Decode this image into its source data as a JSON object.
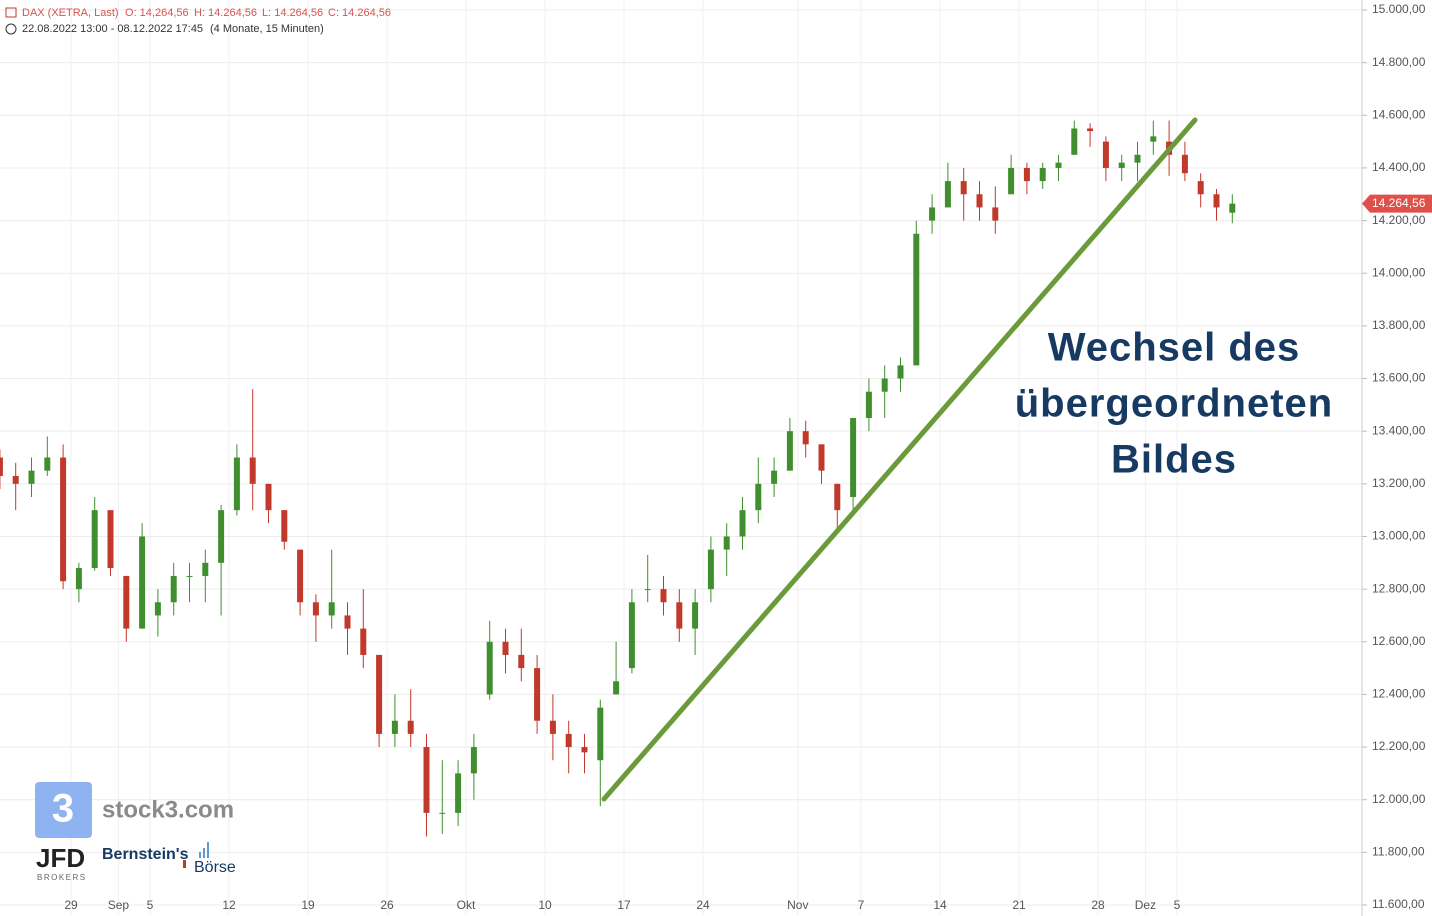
{
  "chart_data": {
    "type": "candlestick",
    "header": {
      "symbol": "DAX (XETRA, Last)",
      "open": "O: 14,264,56",
      "high": "H: 14.264,56",
      "low": "L: 14.264,56",
      "close": "C: 14.264,56",
      "range": "22.08.2022 13:00 - 08.12.2022 17:45",
      "period": "(4 Monate, 15 Minuten)"
    },
    "categories": [
      null,
      null,
      null,
      null,
      null,
      "29",
      null,
      null,
      "Sep",
      null,
      "5",
      null,
      null,
      null,
      null,
      "12",
      null,
      null,
      null,
      null,
      "19",
      null,
      null,
      null,
      null,
      "26",
      null,
      null,
      null,
      null,
      "Okt",
      null,
      null,
      null,
      null,
      "10",
      null,
      null,
      null,
      null,
      "17",
      null,
      null,
      null,
      null,
      "24",
      null,
      null,
      null,
      null,
      null,
      "Nov",
      null,
      null,
      null,
      "7",
      null,
      null,
      null,
      null,
      "14",
      null,
      null,
      null,
      null,
      "21",
      null,
      null,
      null,
      null,
      "28",
      null,
      null,
      "Dez",
      null,
      "5",
      null,
      null,
      null
    ],
    "open": [
      13300,
      13230,
      13200,
      13250,
      13300,
      12800,
      12880,
      13100,
      12850,
      12650,
      12700,
      12750,
      12850,
      12850,
      12900,
      13100,
      13300,
      13200,
      13100,
      12950,
      12750,
      12700,
      12700,
      12650,
      12550,
      12250,
      12300,
      12200,
      11950,
      11950,
      12100,
      12400,
      12600,
      12550,
      12500,
      12300,
      12250,
      12200,
      12150,
      12400,
      12500,
      12800,
      12800,
      12750,
      12650,
      12800,
      12950,
      13000,
      13100,
      13200,
      13250,
      13400,
      13350,
      13200,
      13150,
      13450,
      13550,
      13600,
      13650,
      14200,
      14250,
      14350,
      14300,
      14250,
      14300,
      14400,
      14350,
      14400,
      14450,
      14550,
      14500,
      14400,
      14420,
      14500,
      14500,
      14450,
      14350,
      14300,
      14230
    ],
    "high": [
      13330,
      13280,
      13300,
      13380,
      13350,
      12900,
      13150,
      13100,
      12850,
      13050,
      12800,
      12900,
      12900,
      12950,
      13120,
      13350,
      13560,
      13200,
      13100,
      12950,
      12780,
      12950,
      12750,
      12800,
      12550,
      12400,
      12420,
      12250,
      12150,
      12150,
      12250,
      12680,
      12650,
      12650,
      12550,
      12400,
      12300,
      12250,
      12380,
      12600,
      12800,
      12930,
      12850,
      12800,
      12800,
      13000,
      13050,
      13150,
      13300,
      13300,
      13450,
      13440,
      13350,
      13200,
      13450,
      13600,
      13650,
      13680,
      14200,
      14300,
      14420,
      14400,
      14350,
      14330,
      14450,
      14420,
      14420,
      14450,
      14580,
      14570,
      14520,
      14450,
      14500,
      14580,
      14580,
      14500,
      14380,
      14320,
      14300
    ],
    "low": [
      13180,
      13100,
      13150,
      13230,
      12800,
      12750,
      12870,
      12850,
      12600,
      12650,
      12620,
      12700,
      12750,
      12750,
      12700,
      13080,
      13100,
      13050,
      12950,
      12700,
      12600,
      12650,
      12550,
      12500,
      12200,
      12200,
      12200,
      11860,
      11870,
      11900,
      12000,
      12380,
      12480,
      12450,
      12250,
      12150,
      12100,
      12100,
      11975,
      12400,
      12480,
      12750,
      12700,
      12600,
      12550,
      12750,
      12850,
      12950,
      13050,
      13150,
      13250,
      13300,
      13200,
      13020,
      13100,
      13400,
      13450,
      13550,
      13650,
      14150,
      14250,
      14200,
      14200,
      14150,
      14300,
      14300,
      14320,
      14350,
      14450,
      14480,
      14350,
      14350,
      14350,
      14450,
      14370,
      14350,
      14250,
      14200,
      14190
    ],
    "close": [
      13230,
      13200,
      13250,
      13300,
      12830,
      12880,
      13100,
      12880,
      12650,
      13000,
      12750,
      12850,
      12850,
      12900,
      13100,
      13300,
      13200,
      13100,
      12980,
      12750,
      12700,
      12750,
      12650,
      12550,
      12250,
      12300,
      12250,
      11950,
      11950,
      12100,
      12200,
      12600,
      12550,
      12500,
      12300,
      12250,
      12200,
      12180,
      12350,
      12450,
      12750,
      12800,
      12750,
      12650,
      12750,
      12950,
      13000,
      13100,
      13200,
      13250,
      13400,
      13350,
      13250,
      13100,
      13450,
      13550,
      13600,
      13650,
      14150,
      14250,
      14350,
      14300,
      14250,
      14200,
      14400,
      14350,
      14400,
      14420,
      14550,
      14540,
      14400,
      14420,
      14450,
      14520,
      14450,
      14380,
      14300,
      14250,
      14264.56
    ],
    "up_color": "#3f8f2f",
    "down_color": "#c0392b",
    "ylim": [
      11600,
      15000
    ],
    "yticks": [
      {
        "value": 11600,
        "label": "11.600,00"
      },
      {
        "value": 11800,
        "label": "11.800,00"
      },
      {
        "value": 12000,
        "label": "12.000,00"
      },
      {
        "value": 12200,
        "label": "12.200,00"
      },
      {
        "value": 12400,
        "label": "12.400,00"
      },
      {
        "value": 12600,
        "label": "12.600,00"
      },
      {
        "value": 12800,
        "label": "12.800,00"
      },
      {
        "value": 13000,
        "label": "13.000,00"
      },
      {
        "value": 13200,
        "label": "13.200,00"
      },
      {
        "value": 13400,
        "label": "13.400,00"
      },
      {
        "value": 13600,
        "label": "13.600,00"
      },
      {
        "value": 13800,
        "label": "13.800,00"
      },
      {
        "value": 14000,
        "label": "14.000,00"
      },
      {
        "value": 14200,
        "label": "14.200,00"
      },
      {
        "value": 14400,
        "label": "14.400,00"
      },
      {
        "value": 14600,
        "label": "14.600,00"
      },
      {
        "value": 14800,
        "label": "14.800,00"
      },
      {
        "value": 15000,
        "label": "15.000,00"
      }
    ],
    "last_price": {
      "value": 14264.56,
      "label": "14.264,56"
    },
    "grid": true,
    "annotation": [
      "Wechsel des",
      "übergeordneten",
      "Bildes"
    ],
    "logos": {
      "stock3": "stock3.com",
      "stock3_icon": "3",
      "jfd": "JFD",
      "jfd_sub": "BROKERS",
      "bernstein": "Bernstein's",
      "boerse": "Börse"
    }
  }
}
